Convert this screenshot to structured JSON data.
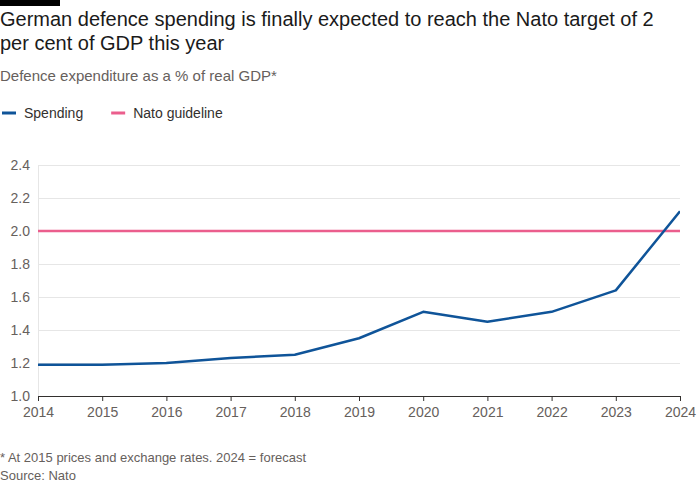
{
  "chart_data": {
    "type": "line",
    "title": "German defence spending is finally expected to reach the Nato target of 2 per cent of GDP this year",
    "subtitle": "Defence expenditure as a % of real GDP*",
    "note": "* At 2015 prices and exchange rates. 2024 = forecast",
    "source": "Source: Nato",
    "x": [
      2014,
      2015,
      2016,
      2017,
      2018,
      2019,
      2020,
      2021,
      2022,
      2023,
      2024
    ],
    "series": [
      {
        "name": "Spending",
        "color": "#0f5499",
        "values": [
          1.19,
          1.19,
          1.2,
          1.23,
          1.25,
          1.35,
          1.51,
          1.45,
          1.51,
          1.64,
          2.12
        ]
      },
      {
        "name": "Nato guideline",
        "color": "#eb5e8d",
        "values": [
          2,
          2,
          2,
          2,
          2,
          2,
          2,
          2,
          2,
          2,
          2
        ]
      }
    ],
    "xlim": [
      2014,
      2024
    ],
    "xticks": [
      2014,
      2015,
      2016,
      2017,
      2018,
      2019,
      2020,
      2021,
      2022,
      2023,
      2024
    ],
    "ylim": [
      1,
      2.4
    ],
    "yticks": [
      {
        "value": 1,
        "label": "1.0"
      },
      1.2,
      1.4,
      1.6,
      1.8,
      {
        "value": 2,
        "label": "2.0"
      },
      2.2,
      2.4
    ],
    "grid": true,
    "legend": "top-left"
  }
}
